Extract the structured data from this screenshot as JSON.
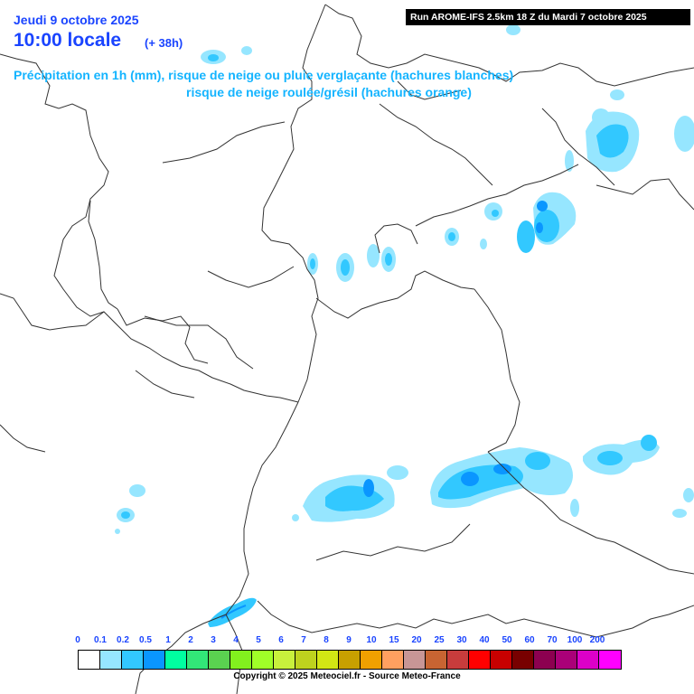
{
  "header": {
    "date": "Jeudi 9 octobre 2025",
    "time": "10:00 locale",
    "lead": "(+ 38h)",
    "run": "Run AROME-IFS 2.5km 18 Z du Mardi 7 octobre 2025",
    "description_line1": "Précipitation en 1h (mm), risque de neige ou pluie verglaçante (hachures blanches)",
    "description_line2": "risque de neige roulée/grésil (hachures orange)"
  },
  "legend": {
    "unit": "mm",
    "labels": [
      "0",
      "0.1",
      "0.2",
      "0.5",
      "1",
      "2",
      "3",
      "4",
      "5",
      "6",
      "7",
      "8",
      "9",
      "10",
      "15",
      "20",
      "25",
      "30",
      "40",
      "50",
      "60",
      "70",
      "100",
      "200"
    ],
    "colors": [
      "#ffffff",
      "#96e6ff",
      "#32c8ff",
      "#0a96ff",
      "#00ffa0",
      "#32e678",
      "#5ad250",
      "#82f01e",
      "#a0ff28",
      "#c8f03c",
      "#bed21e",
      "#d2e614",
      "#c8a000",
      "#f0a000",
      "#ffa060",
      "#c89696",
      "#c86432",
      "#c83c3c",
      "#ff0000",
      "#c80000",
      "#780000",
      "#8c0050",
      "#aa0078",
      "#dc00c8",
      "#ff00ff"
    ]
  },
  "footer": {
    "copyright": "Copyright © 2025 Meteociel.fr - Source Meteo-France"
  },
  "map": {
    "precip_palette": {
      "light": "#96e6ff",
      "medium": "#32c8ff",
      "heavy": "#0a96ff"
    },
    "border_color": "#333333"
  }
}
